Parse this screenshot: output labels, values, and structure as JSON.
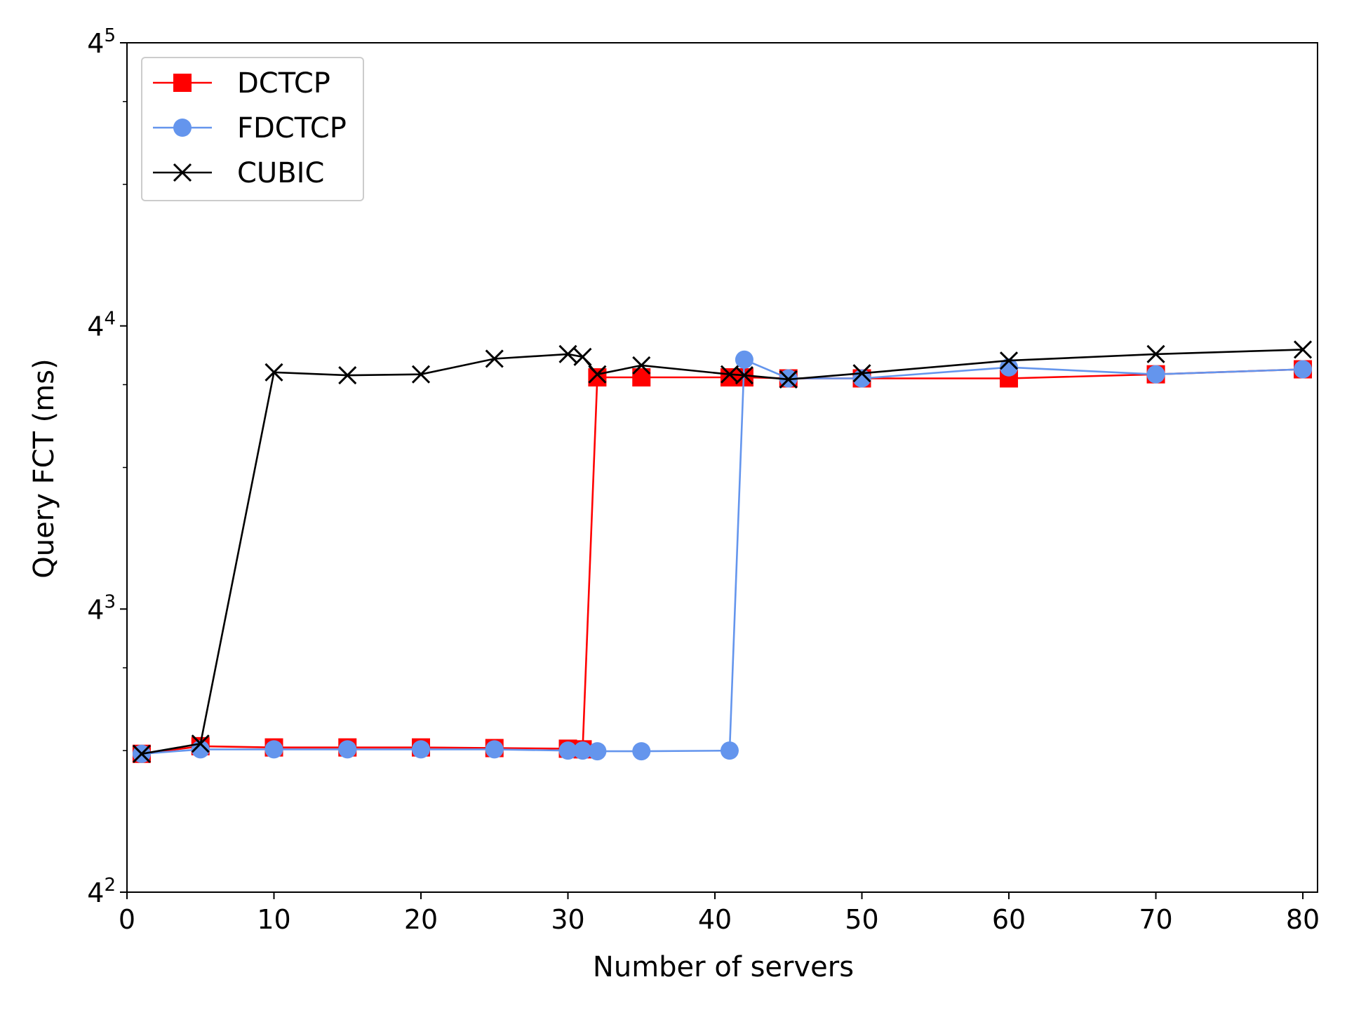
{
  "chart_data": {
    "type": "line",
    "title": "",
    "xlabel": "Number of servers",
    "ylabel": "Query FCT (ms)",
    "xlim": [
      0,
      81
    ],
    "ylim": [
      16,
      1024
    ],
    "yscale": "log",
    "ybase": 4,
    "xticks": [
      0,
      10,
      20,
      30,
      40,
      50,
      60,
      70,
      80
    ],
    "yticks": [
      {
        "base": "4",
        "exp": "2",
        "value": 16
      },
      {
        "base": "4",
        "exp": "3",
        "value": 64
      },
      {
        "base": "4",
        "exp": "4",
        "value": 256
      },
      {
        "base": "4",
        "exp": "5",
        "value": 1024
      }
    ],
    "grid": false,
    "legend_position": "top-left",
    "series": [
      {
        "name": "DCTCP",
        "color": "#ff0000",
        "marker": "square",
        "x": [
          1,
          5,
          10,
          15,
          20,
          25,
          30,
          31,
          32,
          35,
          41,
          42,
          45,
          50,
          60,
          70,
          80
        ],
        "y": [
          31.5,
          32.7,
          32.5,
          32.5,
          32.5,
          32.4,
          32.3,
          32.2,
          199,
          199,
          199,
          199,
          198,
          198,
          198,
          202,
          207
        ]
      },
      {
        "name": "FDCTCP",
        "color": "#6495ed",
        "marker": "circle",
        "x": [
          1,
          5,
          10,
          15,
          20,
          25,
          30,
          31,
          32,
          35,
          41,
          42,
          45,
          50,
          60,
          70,
          80
        ],
        "y": [
          31.5,
          32.2,
          32.2,
          32.2,
          32.2,
          32.2,
          32.0,
          32.0,
          31.9,
          31.9,
          32.0,
          217,
          198,
          198,
          209,
          202,
          207
        ]
      },
      {
        "name": "CUBIC",
        "color": "#000000",
        "marker": "x",
        "x": [
          1,
          5,
          10,
          15,
          20,
          25,
          30,
          31,
          32,
          35,
          41,
          42,
          45,
          50,
          60,
          70,
          80
        ],
        "y": [
          31.5,
          33.1,
          204,
          201,
          202,
          218,
          223,
          220,
          202,
          211,
          202,
          201,
          197,
          203,
          216,
          223,
          228
        ]
      }
    ]
  }
}
